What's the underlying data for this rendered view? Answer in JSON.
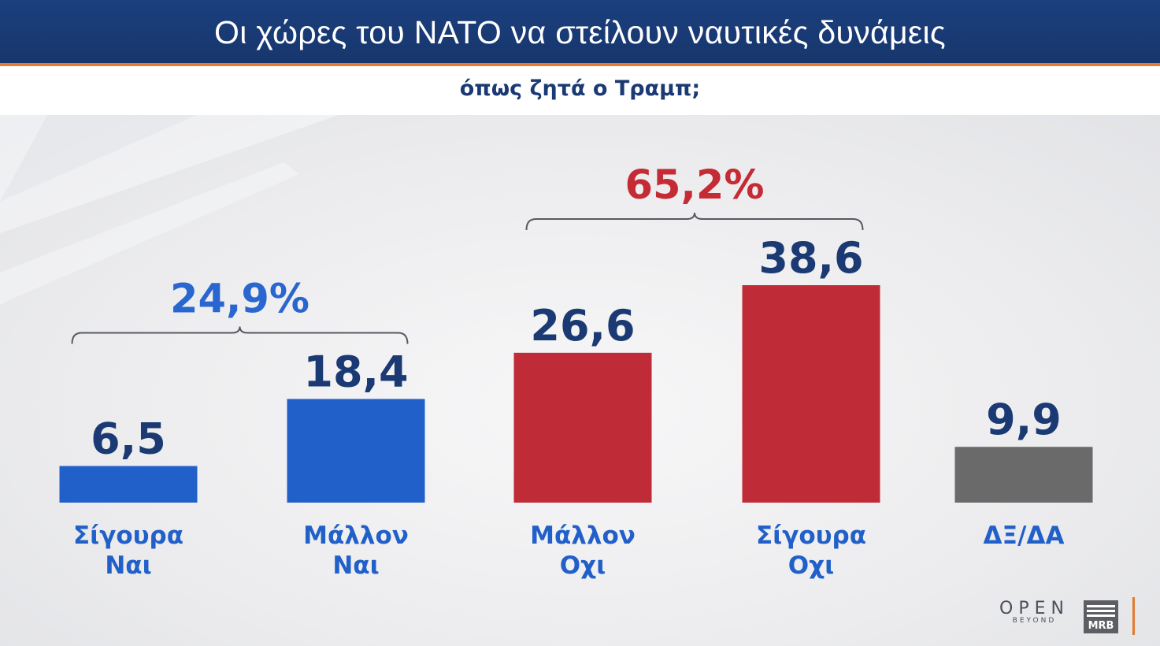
{
  "header": {
    "title": "Οι χώρες του ΝΑΤΟ να στείλουν ναυτικές δυνάμεις",
    "subtitle": "όπως ζητά ο Τραμπ;"
  },
  "colors": {
    "header_bg": "#1b3f7d",
    "accent_line": "#e8792f",
    "yes": "#2260c9",
    "no": "#bf2b37",
    "dk": "#6a6a6a",
    "value_text": "#1b3a73",
    "yes_total_text": "#2a66d0",
    "no_total_text": "#c52b35"
  },
  "chart_data": {
    "type": "bar",
    "title": "Οι χώρες του ΝΑΤΟ να στείλουν ναυτικές δυνάμεις",
    "subtitle": "όπως ζητά ο Τραμπ;",
    "categories": [
      [
        "Σίγουρα",
        "Ναι"
      ],
      [
        "Μάλλον",
        "Ναι"
      ],
      [
        "Μάλλον",
        "Οχι"
      ],
      [
        "Σίγουρα",
        "Οχι"
      ],
      [
        "ΔΞ/ΔΑ"
      ]
    ],
    "values": [
      6.5,
      18.4,
      26.6,
      38.6,
      9.9
    ],
    "value_labels": [
      "6,5",
      "18,4",
      "26,6",
      "38,6",
      "9,9"
    ],
    "bar_colors": [
      "yes",
      "yes",
      "no",
      "no",
      "dk"
    ],
    "groups": [
      {
        "label": "24,9%",
        "value": 24.9,
        "from": 0,
        "to": 1,
        "color": "yes_total"
      },
      {
        "label": "65,2%",
        "value": 65.2,
        "from": 2,
        "to": 3,
        "color": "no_total"
      }
    ],
    "xlabel": "",
    "ylabel": "",
    "ylim": [
      0,
      40
    ],
    "grid": false,
    "legend": "none"
  },
  "logos": {
    "open_word": "OPEN",
    "open_tag": "BEYOND",
    "mrb_word": "MRB"
  }
}
